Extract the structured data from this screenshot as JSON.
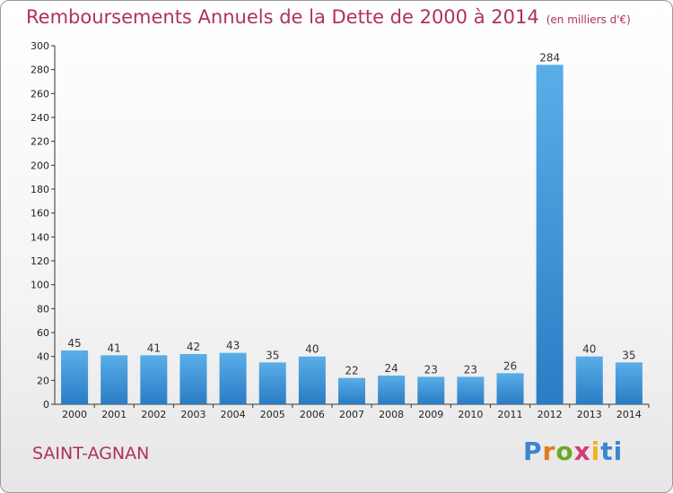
{
  "header": {
    "title": "Remboursements Annuels de la Dette de 2000 à 2014",
    "unit": "(en milliers d'€)"
  },
  "footer": {
    "city": "SAINT-AGNAN",
    "logo": "Proxiti"
  },
  "colors": {
    "accent": "#b03060",
    "bar_light": "#5aaee8",
    "bar_dark": "#2a7cc4"
  },
  "chart_data": {
    "type": "bar",
    "title": "Remboursements Annuels de la Dette de 2000 à 2014",
    "xlabel": "",
    "ylabel": "",
    "categories": [
      "2000",
      "2001",
      "2002",
      "2003",
      "2004",
      "2005",
      "2006",
      "2007",
      "2008",
      "2009",
      "2010",
      "2011",
      "2012",
      "2013",
      "2014"
    ],
    "values": [
      45,
      41,
      41,
      42,
      43,
      35,
      40,
      22,
      24,
      23,
      23,
      26,
      284,
      40,
      35
    ],
    "ylim": [
      0,
      300
    ],
    "yticks": [
      0,
      20,
      40,
      60,
      80,
      100,
      120,
      140,
      160,
      180,
      200,
      220,
      240,
      260,
      280,
      300
    ],
    "grid": false,
    "legend": "none"
  }
}
